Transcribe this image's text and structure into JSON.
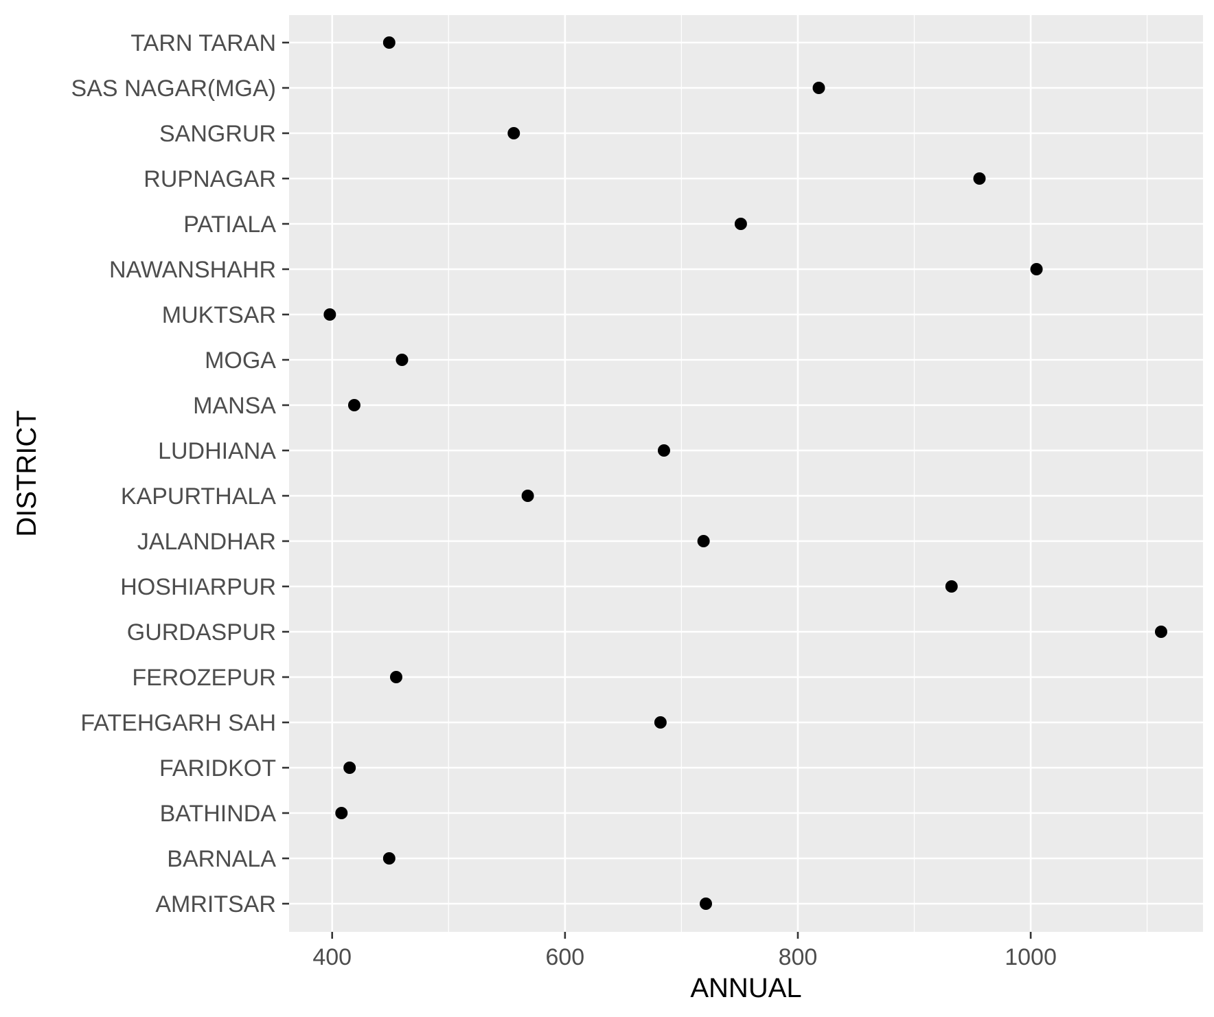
{
  "chart_data": {
    "type": "scatter",
    "xlabel": "ANNUAL",
    "ylabel": "DISTRICT",
    "xlim": [
      363,
      1148
    ],
    "x_ticks": [
      400,
      600,
      800,
      1000
    ],
    "x_minor": [
      500,
      700,
      900,
      1100
    ],
    "categories": [
      "AMRITSAR",
      "BARNALA",
      "BATHINDA",
      "FARIDKOT",
      "FATEHGARH SAH",
      "FEROZEPUR",
      "GURDASPUR",
      "HOSHIARPUR",
      "JALANDHAR",
      "KAPURTHALA",
      "LUDHIANA",
      "MANSA",
      "MOGA",
      "MUKTSAR",
      "NAWANSHAHR",
      "PATIALA",
      "RUPNAGAR",
      "SANGRUR",
      "SAS NAGAR(MGA)",
      "TARN TARAN"
    ],
    "values": [
      721,
      449,
      408,
      415,
      682,
      455,
      1112,
      932,
      719,
      568,
      685,
      419,
      460,
      398,
      1005,
      751,
      956,
      556,
      818,
      449
    ],
    "grid": true,
    "legend": "none",
    "colors": {
      "panel": "#ebebeb",
      "grid": "#ffffff",
      "point": "#000000",
      "tick_text": "#4d4d4d",
      "tick_mark": "#333333"
    }
  }
}
